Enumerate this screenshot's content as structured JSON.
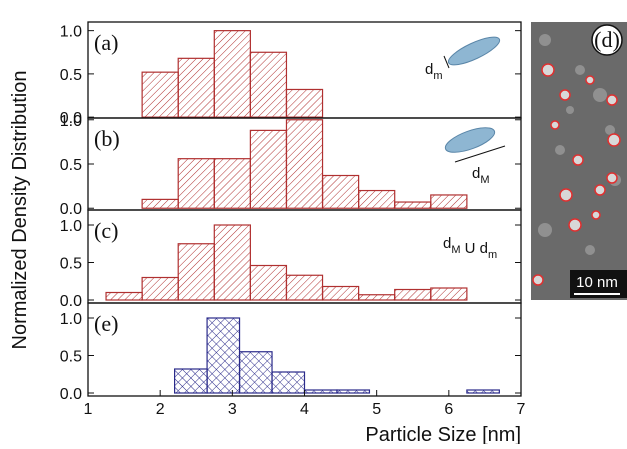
{
  "figure": {
    "ylabel": "Normalized Density Distribution"
  },
  "image": {
    "label": "(d)",
    "scale_bar": "10 nm"
  },
  "chart_data": [
    {
      "type": "histogram",
      "label": "(a)",
      "color": "#b03030",
      "hatch": "diagonal",
      "bins": [
        1.75,
        2.25,
        2.75,
        3.25,
        3.75,
        4.25
      ],
      "values": [
        0.52,
        0.68,
        1.0,
        0.75,
        0.32
      ],
      "xlim": [
        1,
        7
      ],
      "ylim": [
        -0.01,
        1.1
      ],
      "yticks": [
        {
          "value": 0,
          "label": "0.0"
        },
        0.5,
        {
          "value": 1,
          "label": "1.0"
        }
      ],
      "annotation": [
        {
          "text": "d",
          "sub": "m"
        }
      ]
    },
    {
      "type": "histogram",
      "label": "(b)",
      "color": "#b03030",
      "hatch": "diagonal",
      "bins": [
        1.75,
        2.25,
        2.75,
        3.25,
        3.75,
        4.25,
        4.75,
        5.25,
        5.75,
        6.25
      ],
      "values": [
        0.1,
        0.56,
        0.56,
        0.88,
        1.0,
        0.37,
        0.2,
        0.07,
        0.15
      ],
      "xlim": [
        1,
        7
      ],
      "ylim": [
        -0.02,
        1.02
      ],
      "yticks": [
        {
          "value": 0,
          "label": "0.0"
        },
        0.5,
        {
          "value": 1,
          "label": "1.0"
        }
      ],
      "annotation": [
        {
          "text": "d",
          "sub": "M"
        }
      ]
    },
    {
      "type": "histogram",
      "label": "(c)",
      "color": "#b03030",
      "hatch": "diagonal",
      "bins": [
        1.25,
        1.75,
        2.25,
        2.75,
        3.25,
        3.75,
        4.25,
        4.75,
        5.25,
        5.75,
        6.25
      ],
      "values": [
        0.1,
        0.3,
        0.75,
        1.0,
        0.46,
        0.33,
        0.18,
        0.07,
        0.14,
        0.16
      ],
      "xlim": [
        1,
        7
      ],
      "ylim": [
        -0.04,
        1.2
      ],
      "yticks": [
        {
          "value": 0,
          "label": "0.0"
        },
        0.5,
        {
          "value": 1,
          "label": "1.0"
        }
      ],
      "annotation": [
        {
          "text": "d",
          "sub": "M"
        },
        {
          "text": " U d",
          "sub": "m"
        }
      ]
    },
    {
      "type": "histogram",
      "label": "(e)",
      "color": "#2a2a8a",
      "hatch": "cross",
      "bins": [
        2.2,
        2.65,
        3.1,
        3.55,
        4.0,
        4.45,
        4.9,
        5.35,
        5.8,
        6.25,
        6.7
      ],
      "values": [
        0.32,
        1.0,
        0.55,
        0.28,
        0.04,
        0.04,
        0,
        0,
        0,
        0.04
      ],
      "xlim": [
        1,
        7
      ],
      "ylim": [
        -0.04,
        1.2
      ],
      "yticks": [
        {
          "value": 0,
          "label": "0.0"
        },
        0.5,
        {
          "value": 1,
          "label": "1.0"
        }
      ],
      "xticks": [
        1,
        2,
        3,
        4,
        5,
        6,
        7
      ],
      "xlabel": "Particle Size [nm]"
    }
  ]
}
